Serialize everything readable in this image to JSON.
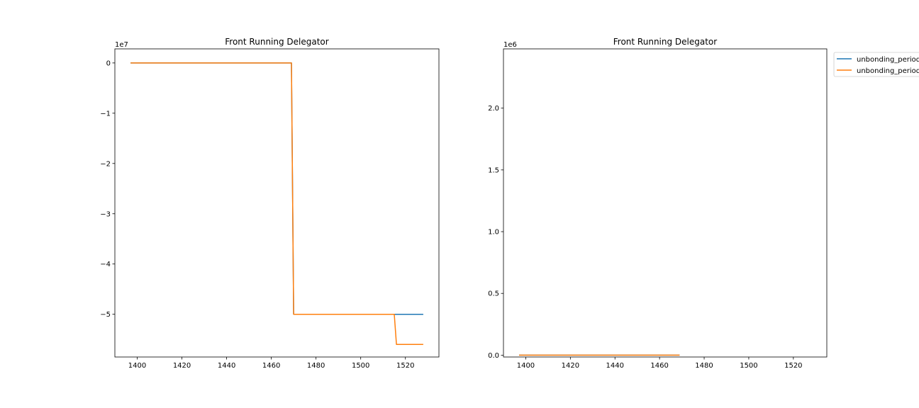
{
  "colors": {
    "series1": "#1f77b4",
    "series2": "#ff7f0e",
    "frame": "#000000",
    "legend_border": "#cccccc"
  },
  "chart_data": [
    {
      "type": "line",
      "title": "Front Running Delegator",
      "xlabel": "",
      "ylabel": "",
      "offset_text": "1e7",
      "xlim": [
        1390,
        1535
      ],
      "ylim": [
        -58500000,
        2800000
      ],
      "y_scale": 10000000,
      "xticks": [
        1400,
        1420,
        1440,
        1460,
        1480,
        1500,
        1520
      ],
      "yticks": [
        0,
        -10000000,
        -20000000,
        -30000000,
        -40000000,
        -50000000
      ],
      "ytick_labels": [
        "0",
        "−1",
        "−2",
        "−3",
        "−4",
        "−5"
      ],
      "series": [
        {
          "name": "unbonding_period",
          "color_key": "series1",
          "points": [
            [
              1397,
              0
            ],
            [
              1469,
              0
            ],
            [
              1470,
              -50000000
            ],
            [
              1528,
              -50000000
            ]
          ]
        },
        {
          "name": "unbonding_period",
          "color_key": "series2",
          "points": [
            [
              1397,
              0
            ],
            [
              1469,
              0
            ],
            [
              1470,
              -50000000
            ],
            [
              1515,
              -50000000
            ],
            [
              1516,
              -56000000
            ],
            [
              1528,
              -56000000
            ]
          ]
        }
      ]
    },
    {
      "type": "line",
      "title": "Front Running Delegator",
      "xlabel": "",
      "ylabel": "",
      "offset_text": "1e6",
      "xlim": [
        1390,
        1535
      ],
      "ylim": [
        -15000,
        2480000
      ],
      "y_scale": 1000000,
      "xticks": [
        1400,
        1420,
        1440,
        1460,
        1480,
        1500,
        1520
      ],
      "yticks": [
        0,
        500000,
        1000000,
        1500000,
        2000000
      ],
      "ytick_labels": [
        "0.0",
        "0.5",
        "1.0",
        "1.5",
        "2.0"
      ],
      "legend": {
        "position": "upper-left-outside",
        "entries": [
          "unbonding_period",
          "unbonding_period"
        ]
      },
      "series": [
        {
          "name": "unbonding_period",
          "color_key": "series1",
          "points": [
            [
              1397,
              0
            ],
            [
              1469,
              0
            ]
          ]
        },
        {
          "name": "unbonding_period",
          "color_key": "series2",
          "points": [
            [
              1397,
              0
            ],
            [
              1469,
              0
            ]
          ]
        }
      ]
    }
  ]
}
